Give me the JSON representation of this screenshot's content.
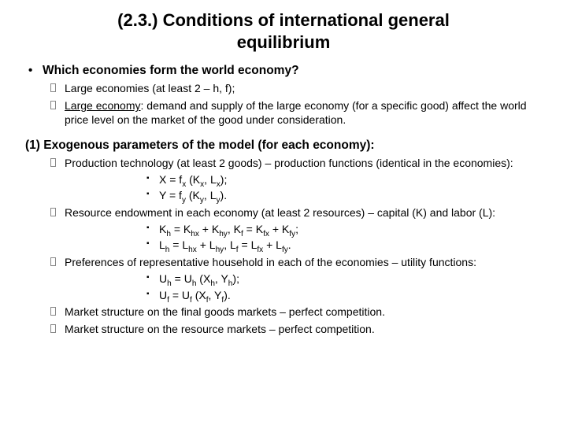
{
  "title": "(2.3.) Conditions of international general equilibrium",
  "q1": "Which economies form the world economy?",
  "q1_items": [
    "Large economies (at least 2 – h, f);",
    "<span class=\"u\">Large economy</span>: demand and supply of the large economy (for a specific good) affect the world price level on the market of the good under consideration."
  ],
  "h2": "(1) Exogenous parameters of the model (for each economy):",
  "p1": "Production technology (at least 2 goods) – production functions (identical in the economies):",
  "p1_sub": [
    "X = f<sub>x</sub> (K<sub>x</sub>, L<sub>x</sub>);",
    "Y = f<sub>y</sub> (K<sub>y</sub>, L<sub>y</sub>)."
  ],
  "p2": "Resource endowment in each economy (at least 2 resources) – capital (K) and labor (L):",
  "p2_sub": [
    "K<sub>h</sub> = K<sub>hx</sub> + K<sub>hy</sub>, K<sub>f</sub> = K<sub>fx</sub> + K<sub>fy</sub>;",
    "L<sub>h</sub> = L<sub>hx</sub> + L<sub>hy</sub>, L<sub>f</sub> = L<sub>fx</sub> + L<sub>fy</sub>."
  ],
  "p3": "Preferences of representative household in each of the economies –  utility functions:",
  "p3_sub": [
    "U<sub>h</sub> = U<sub>h</sub> (X<sub>h</sub>, Y<sub>h</sub>);",
    "U<sub>f</sub> = U<sub>f</sub> (X<sub>f</sub>, Y<sub>f</sub>)."
  ],
  "p4": "Market structure on the final goods markets – perfect competition.",
  "p5": "Market structure on the resource markets – perfect competition."
}
